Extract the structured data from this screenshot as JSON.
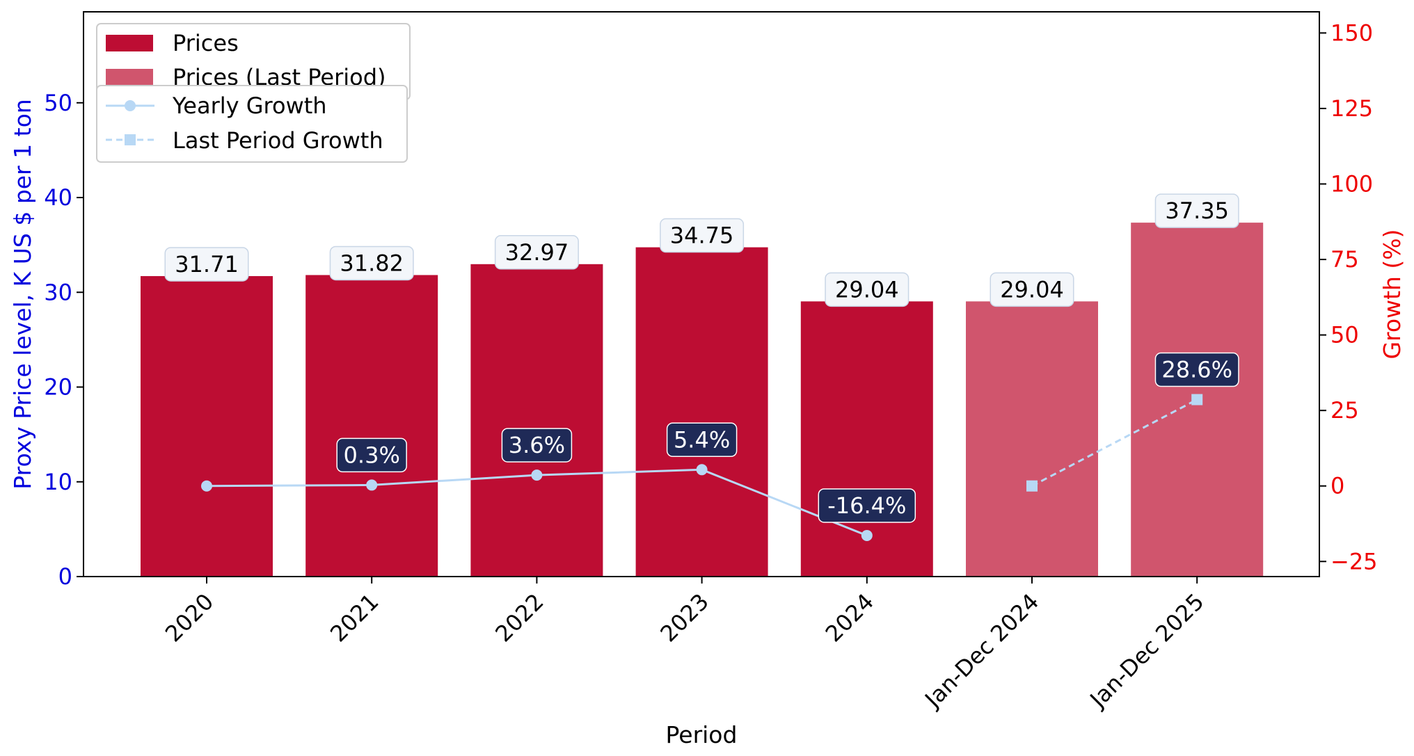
{
  "chart_data": {
    "type": "bar",
    "categories": [
      "2020",
      "2021",
      "2022",
      "2023",
      "2024",
      "Jan-Dec 2024",
      "Jan-Dec 2025"
    ],
    "series": [
      {
        "name": "Prices",
        "values": [
          31.71,
          31.82,
          32.97,
          34.75,
          29.04,
          null,
          null
        ],
        "color": "#BD0D33"
      },
      {
        "name": "Prices (Last Period)",
        "values": [
          null,
          null,
          null,
          null,
          null,
          29.04,
          37.35
        ],
        "color": "#D0556D"
      },
      {
        "name": "Yearly Growth",
        "type": "line",
        "axis": "right",
        "values": [
          0,
          0.3,
          3.6,
          5.4,
          -16.4,
          null,
          null
        ],
        "color": "#B8D8F5",
        "marker": "circle"
      },
      {
        "name": "Last Period Growth",
        "type": "line",
        "axis": "right",
        "style": "dashed",
        "values": [
          null,
          null,
          null,
          null,
          null,
          0,
          28.6
        ],
        "color": "#B8D8F5",
        "marker": "square"
      }
    ],
    "bar_labels": [
      "31.71",
      "31.82",
      "32.97",
      "34.75",
      "29.04",
      "29.04",
      "37.35"
    ],
    "growth_labels": [
      "",
      "0.3%",
      "3.6%",
      "5.4%",
      "-16.4%",
      "",
      "28.6%"
    ],
    "xlabel": "Period",
    "ylabel": "Proxy Price level, K US $ per 1 ton",
    "y2label": "Growth (%)",
    "ylim": [
      0,
      59.6
    ],
    "y2lim": [
      -30,
      157
    ],
    "yticks": [
      "0",
      "10",
      "20",
      "30",
      "40",
      "50"
    ],
    "y2ticks": [
      "−25",
      "0",
      "25",
      "50",
      "75",
      "100",
      "125",
      "150"
    ],
    "y2tick_values": [
      -25,
      0,
      25,
      50,
      75,
      100,
      125,
      150
    ],
    "left_axis_color": "#0000DD",
    "right_axis_color": "#EE0000",
    "label_box_color": "#1F2A57",
    "grid": false,
    "legend_placement": "top-left"
  }
}
